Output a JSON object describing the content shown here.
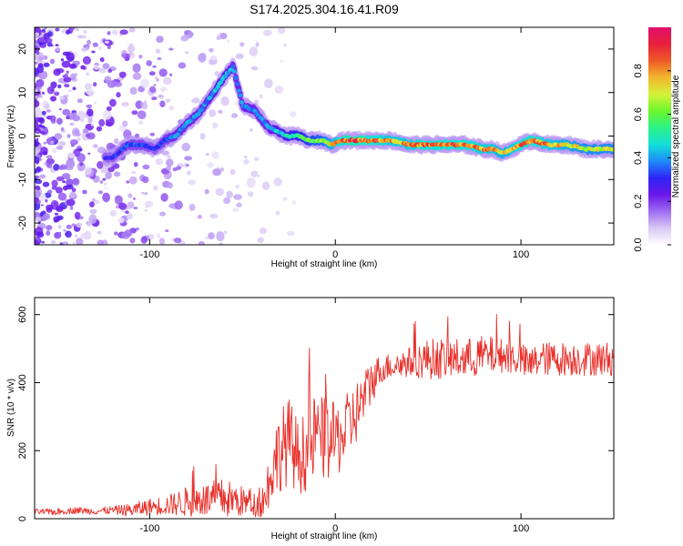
{
  "figure_title": "S174.2025.304.16.41.R09",
  "chart_data": [
    {
      "type": "heatmap",
      "title": "S174.2025.304.16.41.R09",
      "xlabel": "Height of straight line (km)",
      "ylabel": "Frequency (Hz)",
      "xlim": [
        -162,
        150
      ],
      "ylim": [
        -25,
        25
      ],
      "x_ticks": [
        -100,
        0,
        100
      ],
      "y_ticks": [
        -20,
        -10,
        0,
        10,
        20
      ],
      "x_tick_labels": [
        "-100",
        "0",
        "100"
      ],
      "y_tick_labels": [
        "-20",
        "-10",
        "0",
        "10",
        "20"
      ],
      "colorbar": {
        "label": "Normalized spectral amplitude",
        "range": [
          0,
          1
        ],
        "ticks": [
          0,
          0.2,
          0.4,
          0.6,
          0.8
        ],
        "tick_labels": [
          "0.0",
          "0.2",
          "0.4",
          "0.6",
          "0.8"
        ],
        "colors": [
          "#ffffff",
          "#d9c8f5",
          "#9e6cf2",
          "#6a16e8",
          "#2c26f6",
          "#1e8cf8",
          "#13e0d7",
          "#2cf286",
          "#6bf72c",
          "#d6f23a",
          "#f2b62d",
          "#ee5a27",
          "#e8203a",
          "#e0106c"
        ]
      },
      "ridge_frequency_hz": {
        "x": [
          -120,
          -112,
          -104,
          -97,
          -92,
          -86,
          -80,
          -74,
          -69,
          -64,
          -59,
          -55,
          -50,
          -44,
          -40,
          -36,
          -31,
          -26,
          -20,
          -14,
          -7,
          -2,
          3,
          10,
          20,
          30,
          40,
          50,
          60,
          70,
          80,
          85,
          90,
          95,
          100,
          106,
          115,
          125,
          135,
          150
        ],
        "y": [
          -5,
          -2,
          -2,
          -3,
          -1,
          0,
          3,
          5,
          8,
          11,
          14,
          16,
          7,
          6,
          4,
          2,
          1,
          0,
          0,
          -1,
          -1,
          -2,
          -1,
          -1,
          -1,
          -1,
          -2,
          -2,
          -2,
          -2,
          -3,
          -3,
          -4,
          -3,
          -2,
          -1,
          -2,
          -2,
          -3,
          -3
        ]
      },
      "ridge_amplitude": {
        "x": [
          -120,
          -112,
          -104,
          -97,
          -92,
          -86,
          -80,
          -74,
          -69,
          -64,
          -59,
          -55,
          -50,
          -44,
          -40,
          -36,
          -31,
          -26,
          -20,
          -14,
          -7,
          -2,
          3,
          10,
          20,
          30,
          40,
          50,
          60,
          70,
          80,
          85,
          90,
          95,
          100,
          106,
          115,
          125,
          135,
          150
        ],
        "y": [
          0.3,
          0.35,
          0.35,
          0.3,
          0.35,
          0.4,
          0.4,
          0.4,
          0.4,
          0.45,
          0.45,
          0.4,
          0.4,
          0.4,
          0.4,
          0.4,
          0.45,
          0.5,
          0.55,
          0.6,
          0.65,
          0.75,
          0.85,
          0.9,
          0.85,
          0.8,
          0.8,
          0.85,
          0.85,
          0.85,
          0.8,
          0.8,
          0.75,
          0.8,
          0.85,
          0.85,
          0.8,
          0.75,
          0.7,
          0.7
        ]
      }
    },
    {
      "type": "line",
      "xlabel": "Height of straight line (km)",
      "ylabel": "SNR (10 * v/v)",
      "xlim": [
        -162,
        150
      ],
      "ylim": [
        0,
        650
      ],
      "x_ticks": [
        -100,
        0,
        100
      ],
      "y_ticks": [
        0,
        200,
        400,
        600
      ],
      "x_tick_labels": [
        "-100",
        "0",
        "100"
      ],
      "y_tick_labels": [
        "0",
        "200",
        "400",
        "600"
      ],
      "series": [
        {
          "name": "SNR",
          "color": "#e8302a",
          "x": [
            -162,
            -150,
            -140,
            -130,
            -120,
            -110,
            -100,
            -90,
            -80,
            -70,
            -60,
            -50,
            -42,
            -38,
            -34,
            -30,
            -25,
            -20,
            -15,
            -10,
            -5,
            0,
            5,
            10,
            15,
            20,
            25,
            30,
            40,
            50,
            60,
            70,
            80,
            90,
            100,
            104,
            110,
            120,
            130,
            140,
            150
          ],
          "y": [
            20,
            20,
            25,
            22,
            25,
            25,
            35,
            40,
            50,
            55,
            60,
            50,
            40,
            60,
            150,
            200,
            230,
            180,
            200,
            250,
            230,
            230,
            250,
            300,
            350,
            410,
            440,
            450,
            460,
            470,
            470,
            470,
            480,
            480,
            470,
            450,
            470,
            470,
            470,
            470,
            470
          ],
          "band": [
            8,
            10,
            10,
            10,
            12,
            20,
            25,
            30,
            45,
            50,
            60,
            45,
            35,
            60,
            100,
            120,
            130,
            110,
            120,
            130,
            120,
            110,
            110,
            100,
            80,
            70,
            40,
            40,
            45,
            60,
            60,
            60,
            60,
            50,
            50,
            50,
            50,
            50,
            50,
            50,
            50
          ]
        }
      ]
    }
  ]
}
